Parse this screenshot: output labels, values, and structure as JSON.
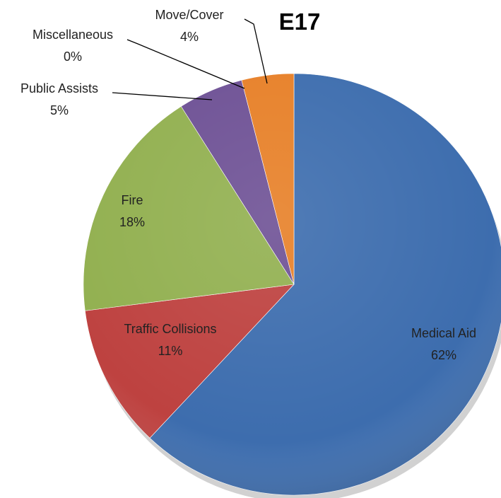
{
  "chart_data": {
    "type": "pie",
    "title": "E17",
    "slices": [
      {
        "name": "Medical Aid",
        "value": 62,
        "label": "62%",
        "color": "#3D6DAE"
      },
      {
        "name": "Traffic Collisions",
        "value": 11,
        "label": "11%",
        "color": "#BE4240"
      },
      {
        "name": "Fire",
        "value": 18,
        "label": "18%",
        "color": "#92B050"
      },
      {
        "name": "Public Assists",
        "value": 5,
        "label": "5%",
        "color": "#6E5195"
      },
      {
        "name": "Miscellaneous",
        "value": 0,
        "label": "0%",
        "color": "#3E94AE"
      },
      {
        "name": "Move/Cover",
        "value": 4,
        "label": "4%",
        "color": "#E78028"
      }
    ],
    "legend": "none",
    "data_labels": "category name and percentage"
  }
}
